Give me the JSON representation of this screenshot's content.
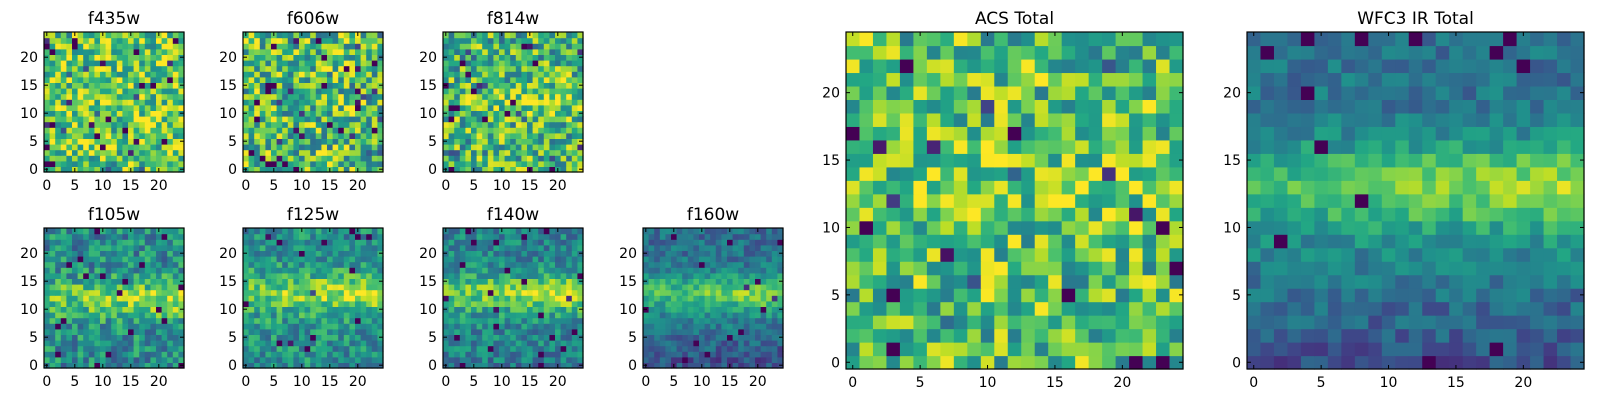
{
  "colormap": "viridis",
  "colors": {
    "frame": "#000000",
    "background": "#ffffff"
  },
  "chart_data": [
    {
      "type": "heatmap",
      "title": "f435w",
      "grid": false,
      "xlim": [
        -0.5,
        24.5
      ],
      "ylim": [
        -0.5,
        24.5
      ],
      "xticks": [
        "0",
        "5",
        "10",
        "15",
        "20"
      ],
      "yticks": [
        "0",
        "5",
        "10",
        "15",
        "20"
      ],
      "values": "noise, roughly uniform (mostly green-yellow)"
    },
    {
      "type": "heatmap",
      "title": "f606w",
      "grid": false,
      "xlim": [
        -0.5,
        24.5
      ],
      "ylim": [
        -0.5,
        24.5
      ],
      "xticks": [
        "0",
        "5",
        "10",
        "15",
        "20"
      ],
      "yticks": [
        "0",
        "5",
        "10",
        "15",
        "20"
      ],
      "values": "noise, roughly uniform"
    },
    {
      "type": "heatmap",
      "title": "f814w",
      "grid": false,
      "xlim": [
        -0.5,
        24.5
      ],
      "ylim": [
        -0.5,
        24.5
      ],
      "xticks": [
        "0",
        "5",
        "10",
        "15",
        "20"
      ],
      "yticks": [
        "0",
        "5",
        "10",
        "15",
        "20"
      ],
      "values": "noise with faint horizontal band near y=12"
    },
    {
      "type": "heatmap",
      "title": "f105w",
      "grid": false,
      "xlim": [
        -0.5,
        24.5
      ],
      "ylim": [
        -0.5,
        24.5
      ],
      "xticks": [
        "0",
        "5",
        "10",
        "15",
        "20"
      ],
      "yticks": [
        "0",
        "5",
        "10",
        "15",
        "20"
      ],
      "values": "bright horizontal band near y=12"
    },
    {
      "type": "heatmap",
      "title": "f125w",
      "grid": false,
      "xlim": [
        -0.5,
        24.5
      ],
      "ylim": [
        -0.5,
        24.5
      ],
      "xticks": [
        "0",
        "5",
        "10",
        "15",
        "20"
      ],
      "yticks": [
        "0",
        "5",
        "10",
        "15",
        "20"
      ],
      "values": "bright horizontal band near y=13"
    },
    {
      "type": "heatmap",
      "title": "f140w",
      "grid": false,
      "xlim": [
        -0.5,
        24.5
      ],
      "ylim": [
        -0.5,
        24.5
      ],
      "xticks": [
        "0",
        "5",
        "10",
        "15",
        "20"
      ],
      "yticks": [
        "0",
        "5",
        "10",
        "15",
        "20"
      ],
      "values": "bright horizontal band near y=13"
    },
    {
      "type": "heatmap",
      "title": "f160w",
      "grid": false,
      "xlim": [
        -0.5,
        24.5
      ],
      "ylim": [
        -0.5,
        24.5
      ],
      "xticks": [
        "0",
        "5",
        "10",
        "15",
        "20"
      ],
      "yticks": [
        "0",
        "5",
        "10",
        "15",
        "20"
      ],
      "values": "band near y=13, dark lower region"
    },
    {
      "type": "heatmap",
      "title": "ACS Total",
      "grid": false,
      "xlim": [
        -0.5,
        24.5
      ],
      "ylim": [
        -0.5,
        24.5
      ],
      "xticks": [
        "0",
        "5",
        "10",
        "15",
        "20"
      ],
      "yticks": [
        "0",
        "5",
        "10",
        "15",
        "20"
      ],
      "values": "noise, mostly green-yellow"
    },
    {
      "type": "heatmap",
      "title": "WFC3 IR Total",
      "grid": false,
      "xlim": [
        -0.5,
        24.5
      ],
      "ylim": [
        -0.5,
        24.5
      ],
      "xticks": [
        "0",
        "5",
        "10",
        "15",
        "20"
      ],
      "yticks": [
        "0",
        "5",
        "10",
        "15",
        "20"
      ],
      "values": "bright band near y=13, dark bottom rows"
    }
  ]
}
